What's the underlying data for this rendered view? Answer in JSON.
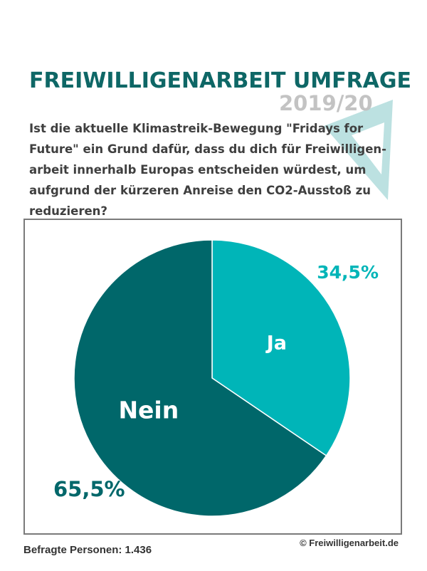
{
  "title": "FREIWILLIGENARBEIT UMFRAGE",
  "year": "2019/20",
  "question": "Ist die aktuelle Klimastreik-Bewegung \"Fridays for Future\" ein Grund dafür, dass du dich für Freiwilligen-arbeit innerhalb Europas entscheiden würdest, um aufgrund der kürzeren Anreise den CO2-Ausstoß zu reduzieren?",
  "footer": {
    "respondents": "Befragte Personen: 1.436",
    "copyright": "© Freiwilligenarbeit.de"
  },
  "colors": {
    "ja": "#00b5b8",
    "nein": "#00676a",
    "title": "#0e6766",
    "year": "#c3c3c3",
    "triangle": "#b0dcdc"
  },
  "chart_data": {
    "type": "pie",
    "title": "",
    "slices": [
      {
        "label": "Ja",
        "value": 34.5,
        "value_label": "34,5%",
        "color": "#00b5b8"
      },
      {
        "label": "Nein",
        "value": 65.5,
        "value_label": "65,5%",
        "color": "#00676a"
      }
    ],
    "start": "12 o'clock",
    "direction": "clockwise",
    "legend": "none"
  }
}
